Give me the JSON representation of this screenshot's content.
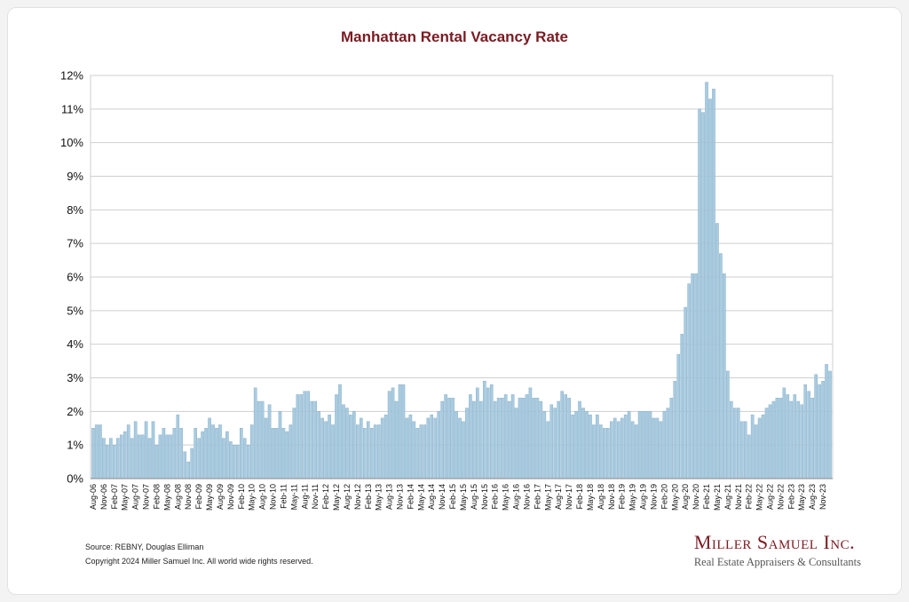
{
  "brand": {
    "name": "Miller Samuel Inc.",
    "tagline": "Real Estate Appraisers & Consultants"
  },
  "footer": {
    "source": "Source: REBNY, Douglas Elliman",
    "copyright": "Copyright 2024 Miller Samuel Inc.  All world wide rights reserved."
  },
  "colors": {
    "bar": "#a9cbe0",
    "bar_stroke": "#7fa9c4",
    "title": "#7a1b22",
    "grid": "#cfcfcf"
  },
  "chart_data": {
    "type": "bar",
    "title": "Manhattan Rental Vacancy Rate",
    "xlabel": "",
    "ylabel": "",
    "ylim": [
      0,
      12
    ],
    "yticks": [
      0,
      1,
      2,
      3,
      4,
      5,
      6,
      7,
      8,
      9,
      10,
      11,
      12
    ],
    "ytick_format": "percent",
    "grid": true,
    "legend": "none",
    "x_start": "2006-08",
    "x_end": "2024-01",
    "xtick_labels": [
      "Aug-06",
      "Nov-06",
      "Feb-07",
      "May-07",
      "Aug-07",
      "Nov-07",
      "Feb-08",
      "May-08",
      "Aug-08",
      "Nov-08",
      "Feb-09",
      "May-09",
      "Aug-09",
      "Nov-09",
      "Feb-10",
      "May-10",
      "Aug-10",
      "Nov-10",
      "Feb-11",
      "May-11",
      "Aug-11",
      "Nov-11",
      "Feb-12",
      "May-12",
      "Aug-12",
      "Nov-12",
      "Feb-13",
      "May-13",
      "Aug-13",
      "Nov-13",
      "Feb-14",
      "May-14",
      "Aug-14",
      "Nov-14",
      "Feb-15",
      "May-15",
      "Aug-15",
      "Nov-15",
      "Feb-16",
      "May-16",
      "Aug-16",
      "Nov-16",
      "Feb-17",
      "May-17",
      "Aug-17",
      "Nov-17",
      "Feb-18",
      "May-18",
      "Aug-18",
      "Nov-18",
      "Feb-19",
      "May-19",
      "Aug-19",
      "Nov-19",
      "Feb-20",
      "May-20",
      "Aug-20",
      "Nov-20",
      "Feb-21",
      "May-21",
      "Aug-21",
      "Nov-21",
      "Feb-22",
      "May-22",
      "Aug-22",
      "Nov-22",
      "Feb-23",
      "May-23",
      "Aug-23",
      "Nov-23"
    ],
    "values": [
      1.5,
      1.6,
      1.6,
      1.2,
      1.0,
      1.2,
      1.0,
      1.2,
      1.3,
      1.4,
      1.6,
      1.2,
      1.7,
      1.3,
      1.3,
      1.7,
      1.2,
      1.7,
      1.0,
      1.3,
      1.5,
      1.3,
      1.3,
      1.5,
      1.9,
      1.5,
      0.8,
      0.5,
      0.9,
      1.5,
      1.2,
      1.4,
      1.5,
      1.8,
      1.6,
      1.5,
      1.6,
      1.2,
      1.4,
      1.1,
      1.0,
      1.0,
      1.5,
      1.2,
      1.0,
      1.6,
      2.7,
      2.3,
      2.3,
      1.8,
      2.2,
      1.5,
      1.5,
      2.0,
      1.5,
      1.4,
      1.6,
      2.1,
      2.5,
      2.5,
      2.6,
      2.6,
      2.3,
      2.3,
      2.0,
      1.8,
      1.7,
      1.9,
      1.6,
      2.5,
      2.8,
      2.2,
      2.1,
      1.9,
      2.0,
      1.6,
      1.8,
      1.5,
      1.7,
      1.5,
      1.6,
      1.6,
      1.8,
      1.9,
      2.6,
      2.7,
      2.3,
      2.8,
      2.8,
      1.8,
      1.9,
      1.7,
      1.5,
      1.6,
      1.6,
      1.8,
      1.9,
      1.8,
      2.0,
      2.3,
      2.5,
      2.4,
      2.4,
      2.0,
      1.8,
      1.7,
      2.1,
      2.5,
      2.3,
      2.7,
      2.3,
      2.9,
      2.7,
      2.8,
      2.3,
      2.4,
      2.4,
      2.5,
      2.3,
      2.5,
      2.1,
      2.4,
      2.4,
      2.5,
      2.7,
      2.4,
      2.4,
      2.3,
      2.0,
      1.7,
      2.2,
      2.1,
      2.3,
      2.6,
      2.5,
      2.4,
      1.9,
      2.0,
      2.3,
      2.1,
      2.0,
      1.9,
      1.6,
      1.9,
      1.6,
      1.5,
      1.5,
      1.7,
      1.8,
      1.7,
      1.8,
      1.9,
      2.0,
      1.7,
      1.6,
      2.0,
      2.0,
      2.0,
      2.0,
      1.8,
      1.8,
      1.7,
      2.0,
      2.1,
      2.4,
      2.9,
      3.7,
      4.3,
      5.1,
      5.8,
      6.1,
      6.1,
      11.0,
      10.9,
      11.8,
      11.3,
      11.6,
      7.6,
      6.7,
      6.1,
      3.2,
      2.3,
      2.1,
      2.1,
      1.7,
      1.7,
      1.3,
      1.9,
      1.6,
      1.8,
      1.9,
      2.1,
      2.2,
      2.3,
      2.4,
      2.4,
      2.7,
      2.5,
      2.3,
      2.5,
      2.3,
      2.2,
      2.8,
      2.6,
      2.4,
      3.1,
      2.8,
      2.9,
      3.4,
      3.2
    ]
  }
}
